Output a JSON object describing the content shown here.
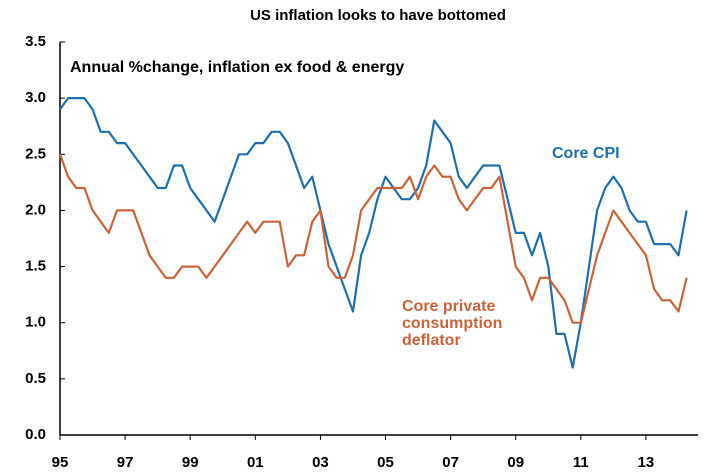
{
  "chart_data": {
    "type": "line",
    "title": "US inflation looks to have bottomed",
    "subtitle": "Annual %change, inflation ex food & energy",
    "x": [
      1995,
      1995.25,
      1995.5,
      1995.75,
      1996,
      1996.25,
      1996.5,
      1996.75,
      1997,
      1997.25,
      1997.5,
      1997.75,
      1998,
      1998.25,
      1998.5,
      1998.75,
      1999,
      1999.25,
      1999.5,
      1999.75,
      2000,
      2000.25,
      2000.5,
      2000.75,
      2001,
      2001.25,
      2001.5,
      2001.75,
      2002,
      2002.25,
      2002.5,
      2002.75,
      2003,
      2003.25,
      2003.5,
      2003.75,
      2004,
      2004.25,
      2004.5,
      2004.75,
      2005,
      2005.25,
      2005.5,
      2005.75,
      2006,
      2006.25,
      2006.5,
      2006.75,
      2007,
      2007.25,
      2007.5,
      2007.75,
      2008,
      2008.25,
      2008.5,
      2008.75,
      2009,
      2009.25,
      2009.5,
      2009.75,
      2010,
      2010.25,
      2010.5,
      2010.75,
      2011,
      2011.25,
      2011.5,
      2011.75,
      2012,
      2012.25,
      2012.5,
      2012.75,
      2013,
      2013.25,
      2013.5,
      2013.75,
      2014,
      2014.25
    ],
    "series": [
      {
        "name": "Core CPI",
        "color": "#1f6fad",
        "values": [
          2.9,
          3.0,
          3.0,
          3.0,
          2.9,
          2.7,
          2.7,
          2.6,
          2.6,
          2.5,
          2.4,
          2.3,
          2.2,
          2.2,
          2.4,
          2.4,
          2.2,
          2.1,
          2.0,
          1.9,
          2.1,
          2.3,
          2.5,
          2.5,
          2.6,
          2.6,
          2.7,
          2.7,
          2.6,
          2.4,
          2.2,
          2.3,
          2.0,
          1.7,
          1.5,
          1.3,
          1.1,
          1.6,
          1.8,
          2.1,
          2.3,
          2.2,
          2.1,
          2.1,
          2.2,
          2.4,
          2.8,
          2.7,
          2.6,
          2.3,
          2.2,
          2.3,
          2.4,
          2.4,
          2.4,
          2.1,
          1.8,
          1.8,
          1.6,
          1.8,
          1.5,
          0.9,
          0.9,
          0.6,
          1.0,
          1.5,
          2.0,
          2.2,
          2.3,
          2.2,
          2.0,
          1.9,
          1.9,
          1.7,
          1.7,
          1.7,
          1.6,
          2.0
        ]
      },
      {
        "name": "Core private consumption deflator",
        "color": "#c8643b",
        "values": [
          2.5,
          2.3,
          2.2,
          2.2,
          2.0,
          1.9,
          1.8,
          2.0,
          2.0,
          2.0,
          1.8,
          1.6,
          1.5,
          1.4,
          1.4,
          1.5,
          1.5,
          1.5,
          1.4,
          1.5,
          1.6,
          1.7,
          1.8,
          1.9,
          1.8,
          1.9,
          1.9,
          1.9,
          1.5,
          1.6,
          1.6,
          1.9,
          2.0,
          1.5,
          1.4,
          1.4,
          1.6,
          2.0,
          2.1,
          2.2,
          2.2,
          2.2,
          2.2,
          2.3,
          2.1,
          2.3,
          2.4,
          2.3,
          2.3,
          2.1,
          2.0,
          2.1,
          2.2,
          2.2,
          2.3,
          1.9,
          1.5,
          1.4,
          1.2,
          1.4,
          1.4,
          1.3,
          1.2,
          1.0,
          1.0,
          1.3,
          1.6,
          1.8,
          2.0,
          1.9,
          1.8,
          1.7,
          1.6,
          1.3,
          1.2,
          1.2,
          1.1,
          1.4
        ]
      }
    ],
    "xlim": [
      1995,
      2014.6
    ],
    "xticks": [
      {
        "value": 1995,
        "label": "95"
      },
      {
        "value": 1997,
        "label": "97"
      },
      {
        "value": 1999,
        "label": "99"
      },
      {
        "value": 2001,
        "label": "01"
      },
      {
        "value": 2003,
        "label": "03"
      },
      {
        "value": 2005,
        "label": "05"
      },
      {
        "value": 2007,
        "label": "07"
      },
      {
        "value": 2009,
        "label": "09"
      },
      {
        "value": 2011,
        "label": "11"
      },
      {
        "value": 2013,
        "label": "13"
      }
    ],
    "ylim": [
      0,
      3.5
    ],
    "yticks": [
      {
        "value": 0,
        "label": "0.0"
      },
      {
        "value": 0.5,
        "label": "0.5"
      },
      {
        "value": 1,
        "label": "1.0"
      },
      {
        "value": 1.5,
        "label": "1.5"
      },
      {
        "value": 2,
        "label": "2.0"
      },
      {
        "value": 2.5,
        "label": "2.5"
      },
      {
        "value": 3,
        "label": "3.0"
      },
      {
        "value": 3.5,
        "label": "3.5"
      }
    ],
    "grid": false
  }
}
